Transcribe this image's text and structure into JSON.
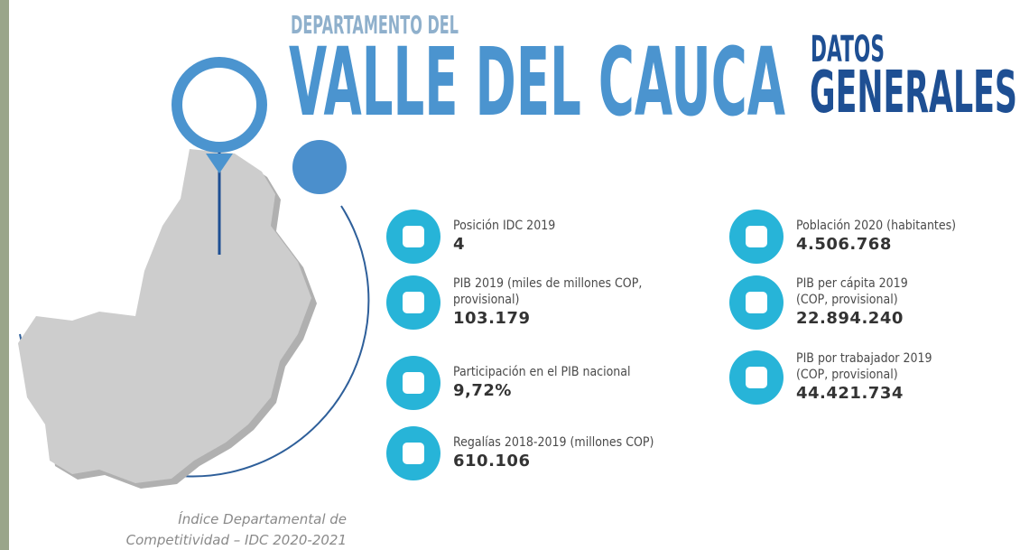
{
  "header": {
    "pretitle": "DEPARTAMENTO DEL",
    "title": "VALLE DEL CAUCA",
    "datos": "DATOS",
    "generales": "GENERALES"
  },
  "stats": [
    {
      "label_lines": [
        "Posición IDC 2019"
      ],
      "value": "4"
    },
    {
      "label_lines": [
        "PIB 2019 (miles de millones COP,",
        "provisional)"
      ],
      "value": "103.179"
    },
    {
      "label_lines": [
        "Participación en el PIB nacional"
      ],
      "value": "9,72%"
    },
    {
      "label_lines": [
        "Regalías 2018-2019 (millones COP)"
      ],
      "value": "610.106"
    },
    {
      "label_lines": [
        "Población 2020 (habitantes)"
      ],
      "value": "4.506.768"
    },
    {
      "label_lines": [
        "PIB per cápita 2019",
        "(COP, provisional)"
      ],
      "value": "22.894.240"
    },
    {
      "label_lines": [
        "PIB por trabajador 2019",
        "(COP, provisional)"
      ],
      "value": "44.421.734"
    }
  ],
  "footer": {
    "lines": [
      "Índice Departamental de",
      "Competitividad – IDC 2020-2021"
    ]
  }
}
